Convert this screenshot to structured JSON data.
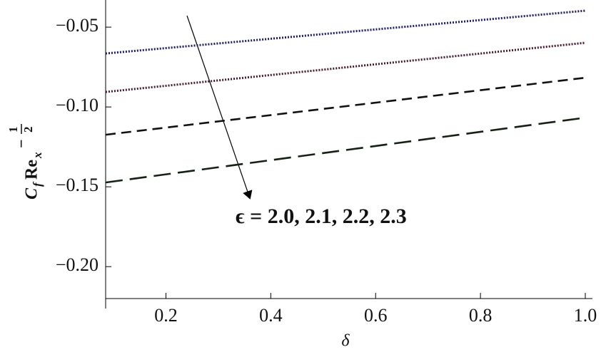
{
  "chart_data": {
    "type": "line",
    "xlabel": "δ",
    "ylabel_parts": [
      "C",
      "f",
      "Re",
      "x",
      "−",
      "1",
      "2"
    ],
    "annotation": "ϵ = 2.0, 2.1, 2.2, 2.3",
    "x": [
      0.085,
      1.0
    ],
    "series": [
      {
        "color": "#1c1c70",
        "linestyle": "dotted",
        "values": [
          -0.0665,
          -0.0397
        ]
      },
      {
        "color": "#4a1830",
        "linestyle": "dotted",
        "values": [
          -0.0906,
          -0.0598
        ]
      },
      {
        "color": "#111111",
        "linestyle": "dashed",
        "values": [
          -0.1174,
          -0.0817
        ]
      },
      {
        "color": "#142214",
        "linestyle": "longdash",
        "values": [
          -0.1473,
          -0.1067
        ]
      }
    ],
    "xlim": [
      0.085,
      1.0
    ],
    "ylim": [
      -0.22,
      -0.033
    ],
    "xticks": [
      0.2,
      0.4,
      0.6,
      0.8,
      {
        "value": 1.0,
        "label": "1.0"
      }
    ],
    "yticks": [
      {
        "value": -0.05,
        "label": "−0.05"
      },
      {
        "value": -0.1,
        "label": "−0.10"
      },
      {
        "value": -0.15,
        "label": "−0.15"
      },
      {
        "value": -0.2,
        "label": "−0.20"
      }
    ]
  }
}
